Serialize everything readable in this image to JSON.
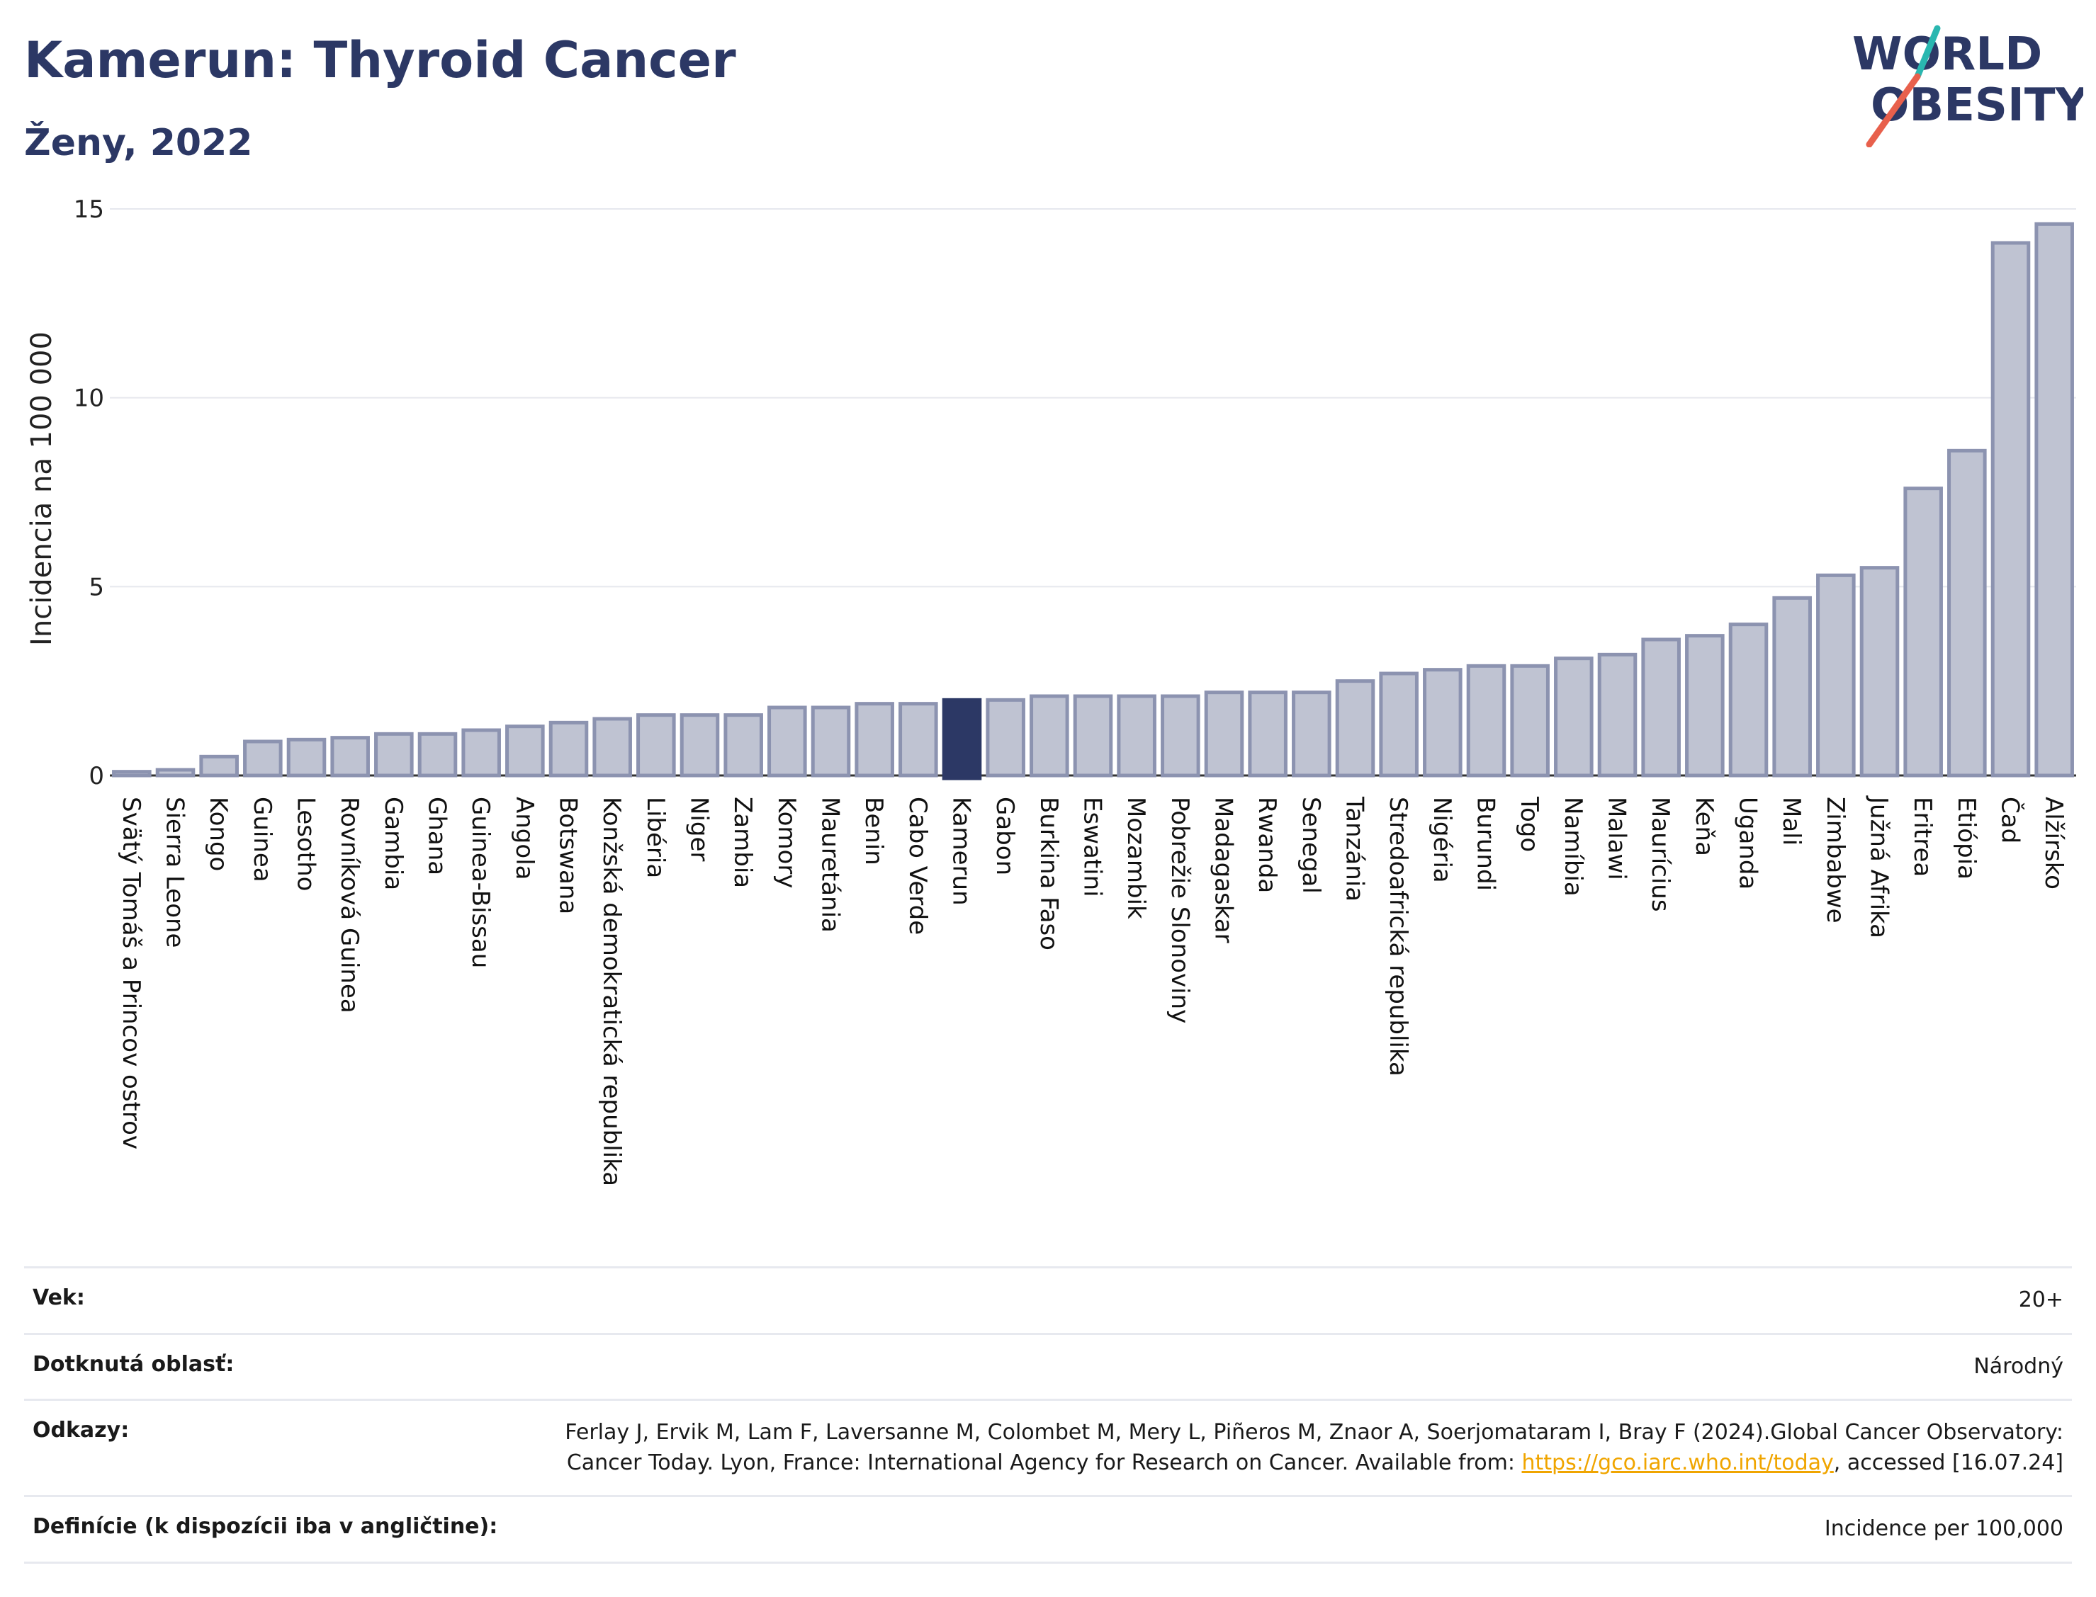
{
  "header": {
    "title": "Kamerun: Thyroid Cancer",
    "subtitle": "Ženy, 2022",
    "logo_text_line1": "WORLD",
    "logo_text_line2": "OBESITY"
  },
  "colors": {
    "title": "#2c3865",
    "bar_fill": "#bfc3d2",
    "bar_stroke": "#8c93b0",
    "highlight": "#2c3865",
    "grid": "#e6e8ee",
    "logo_teal": "#2ab7b0",
    "logo_red": "#e8604c",
    "link": "#f0a500"
  },
  "chart_data": {
    "type": "bar",
    "ylabel": "Incidencia na 100 000",
    "ylim": [
      0,
      15
    ],
    "yticks": [
      0,
      5,
      10,
      15
    ],
    "grid": true,
    "highlight_category": "Kamerun",
    "categories": [
      "Svätý Tomáš a Princov ostrov",
      "Sierra Leone",
      "Kongo",
      "Guinea",
      "Lesotho",
      "Rovníková Guinea",
      "Gambia",
      "Ghana",
      "Guinea-Bissau",
      "Angola",
      "Botswana",
      "Konžská demokratická republika",
      "Libéria",
      "Niger",
      "Zambia",
      "Komory",
      "Mauretánia",
      "Benin",
      "Cabo Verde",
      "Kamerun",
      "Gabon",
      "Burkina Faso",
      "Eswatini",
      "Mozambik",
      "Pobrežie Slonoviny",
      "Madagaskar",
      "Rwanda",
      "Senegal",
      "Tanzánia",
      "Stredoafrická republika",
      "Nigéria",
      "Burundi",
      "Togo",
      "Namíbia",
      "Malawi",
      "Maurícius",
      "Keňa",
      "Uganda",
      "Mali",
      "Zimbabwe",
      "Južná Afrika",
      "Eritrea",
      "Etiópia",
      "Čad",
      "Alžírsko"
    ],
    "values": [
      0.1,
      0.15,
      0.5,
      0.9,
      0.95,
      1.0,
      1.1,
      1.1,
      1.2,
      1.3,
      1.4,
      1.5,
      1.6,
      1.6,
      1.6,
      1.8,
      1.8,
      1.9,
      1.9,
      2.0,
      2.0,
      2.1,
      2.1,
      2.1,
      2.1,
      2.2,
      2.2,
      2.2,
      2.5,
      2.7,
      2.8,
      2.9,
      2.9,
      3.1,
      3.2,
      3.6,
      3.7,
      4.0,
      4.7,
      5.3,
      5.5,
      7.6,
      8.6,
      14.1,
      14.6
    ]
  },
  "meta": {
    "age_label": "Vek:",
    "age_value": "20+",
    "area_label": "Dotknutá oblasť:",
    "area_value": "Národný",
    "refs_label": "Odkazy:",
    "refs_text_1": "Ferlay J, Ervik M, Lam F, Laversanne M, Colombet M, Mery L, Piñeros M, Znaor A, Soerjomataram I, Bray F (2024).Global Cancer Observatory: Cancer Today. Lyon, France: International Agency for Research on Cancer. Available from: ",
    "refs_link": "https://gco.iarc.who.int/today",
    "refs_text_2": ", accessed [16.07.24]",
    "defs_label": "Definície (k dispozícii iba v angličtine):",
    "defs_value": "Incidence per 100,000"
  }
}
